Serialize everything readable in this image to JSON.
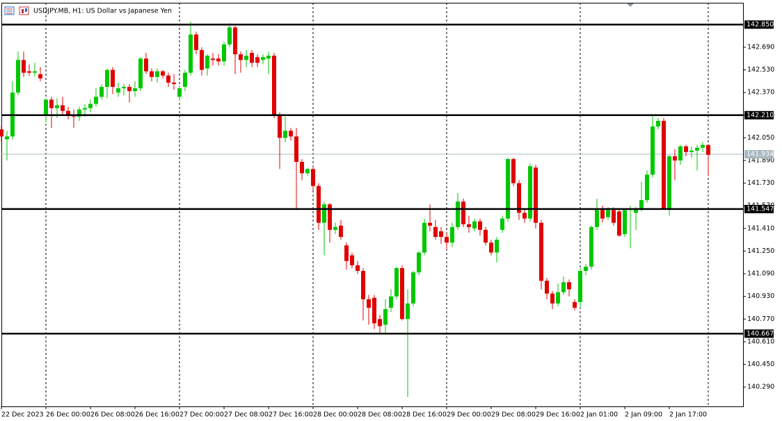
{
  "chart_data": {
    "type": "candlestick",
    "title": "USDJPY.MB, H1:  US Dollar vs Japanese Yen",
    "categories": [
      "22 Dec 2023",
      null,
      null,
      null,
      null,
      null,
      null,
      null,
      "26 Dec 00:00",
      null,
      null,
      null,
      null,
      null,
      null,
      null,
      "26 Dec 08:00",
      null,
      null,
      null,
      null,
      null,
      null,
      null,
      "26 Dec 16:00",
      null,
      null,
      null,
      null,
      null,
      null,
      null,
      "27 Dec 00:00",
      null,
      null,
      null,
      null,
      null,
      null,
      null,
      "27 Dec 08:00",
      null,
      null,
      null,
      null,
      null,
      null,
      null,
      "27 Dec 16:00",
      null,
      null,
      null,
      null,
      null,
      null,
      null,
      "28 Dec 00:00",
      null,
      null,
      null,
      null,
      null,
      null,
      null,
      "28 Dec 08:00",
      null,
      null,
      null,
      null,
      null,
      null,
      null,
      "28 Dec 16:00",
      null,
      null,
      null,
      null,
      null,
      null,
      null,
      "29 Dec 00:00",
      null,
      null,
      null,
      null,
      null,
      null,
      null,
      "29 Dec 08:00",
      null,
      null,
      null,
      null,
      null,
      null,
      null,
      "29 Dec 16:00",
      null,
      null,
      null,
      null,
      null,
      null,
      null,
      "2 Jan 01:00",
      null,
      null,
      null,
      null,
      null,
      null,
      null,
      "2 Jan 09:00",
      null,
      null,
      null,
      null,
      null,
      null,
      null,
      "2 Jan 17:00",
      null,
      null,
      null,
      null,
      null,
      null,
      null
    ],
    "open": [
      142.11,
      142.04,
      142.06,
      142.37,
      142.6,
      142.52,
      142.51,
      142.5,
      142.21,
      142.32,
      142.26,
      142.28,
      142.24,
      142.21,
      142.2,
      142.25,
      142.26,
      142.29,
      142.34,
      142.41,
      142.53,
      142.37,
      142.4,
      142.41,
      142.38,
      142.4,
      142.61,
      142.52,
      142.48,
      142.52,
      142.49,
      142.44,
      142.34,
      142.41,
      142.51,
      142.78,
      142.67,
      142.54,
      142.61,
      142.61,
      142.59,
      142.71,
      142.83,
      142.64,
      142.6,
      142.65,
      142.62,
      142.6,
      142.61,
      142.63,
      142.21,
      142.05,
      142.1,
      142.06,
      141.88,
      141.8,
      141.83,
      141.71,
      141.45,
      141.58,
      141.4,
      141.43,
      141.29,
      141.22,
      141.15,
      141.11,
      140.91,
      140.92,
      140.77,
      140.73,
      140.85,
      140.93,
      141.13,
      140.77,
      140.88,
      141.1,
      141.24,
      141.45,
      141.42,
      141.39,
      141.35,
      141.31,
      141.42,
      141.6,
      141.44,
      141.41,
      141.46,
      141.4,
      141.31,
      141.24,
      141.4,
      141.48,
      141.9,
      141.73,
      141.52,
      141.48,
      141.84,
      141.45,
      141.04,
      140.95,
      140.88,
      140.96,
      141.03,
      140.89,
      140.89,
      141.11,
      141.14,
      141.42,
      141.54,
      141.49,
      141.54,
      141.53,
      141.37,
      141.54,
      141.52,
      141.55,
      141.61,
      141.79,
      142.13,
      142.17,
      141.55,
      141.92,
      141.89,
      141.99,
      141.95,
      141.96,
      141.98,
      142.0
    ],
    "high": [
      142.14,
      142.1,
      142.45,
      142.66,
      142.66,
      142.57,
      142.58,
      142.55,
      142.33,
      142.34,
      142.33,
      142.34,
      142.27,
      142.25,
      142.27,
      142.29,
      142.32,
      142.4,
      142.43,
      142.54,
      142.55,
      142.44,
      142.43,
      142.43,
      142.45,
      142.62,
      142.65,
      142.54,
      142.54,
      142.53,
      142.51,
      142.5,
      142.42,
      142.53,
      142.87,
      142.8,
      142.69,
      142.64,
      142.65,
      142.64,
      142.73,
      142.86,
      142.84,
      142.66,
      142.67,
      142.67,
      142.64,
      142.64,
      142.66,
      142.65,
      142.23,
      142.2,
      142.12,
      142.12,
      141.9,
      141.84,
      141.85,
      141.73,
      141.6,
      141.59,
      141.45,
      141.47,
      141.31,
      141.24,
      141.18,
      141.13,
      140.94,
      140.94,
      140.8,
      140.91,
      140.98,
      141.14,
      141.15,
      140.98,
      141.11,
      141.25,
      141.48,
      141.58,
      141.47,
      141.42,
      141.38,
      141.45,
      141.66,
      141.62,
      141.5,
      141.48,
      141.48,
      141.42,
      141.33,
      141.35,
      141.5,
      141.91,
      141.91,
      141.75,
      141.55,
      141.87,
      141.86,
      141.47,
      141.06,
      140.97,
      141.02,
      141.07,
      141.05,
      140.91,
      141.13,
      141.16,
      141.43,
      141.62,
      141.57,
      141.56,
      141.56,
      141.55,
      141.55,
      141.57,
      141.56,
      141.74,
      141.82,
      142.21,
      142.19,
      142.19,
      141.93,
      141.97,
      142.0,
      142.0,
      141.99,
      142.0,
      142.02,
      142.0
    ],
    "low": [
      142.02,
      141.89,
      142.04,
      142.35,
      142.48,
      142.49,
      142.48,
      142.45,
      142.16,
      142.12,
      142.19,
      142.21,
      142.18,
      142.12,
      142.17,
      142.2,
      142.23,
      142.27,
      142.32,
      142.33,
      142.36,
      142.34,
      142.35,
      142.3,
      142.34,
      142.38,
      142.5,
      142.45,
      142.44,
      142.47,
      142.41,
      142.39,
      142.31,
      142.38,
      142.49,
      142.64,
      142.49,
      142.49,
      142.56,
      142.56,
      142.56,
      142.69,
      142.5,
      142.51,
      142.55,
      142.55,
      142.55,
      142.57,
      142.5,
      142.19,
      141.83,
      142.02,
      142.03,
      141.55,
      141.75,
      141.78,
      141.68,
      141.4,
      141.22,
      141.31,
      141.37,
      141.33,
      141.12,
      141.13,
      141.09,
      140.76,
      140.73,
      140.7,
      140.66,
      140.66,
      140.82,
      140.91,
      140.76,
      140.22,
      140.86,
      141.08,
      141.22,
      141.39,
      141.33,
      141.3,
      141.26,
      141.28,
      141.4,
      141.42,
      141.38,
      141.39,
      141.36,
      141.29,
      141.22,
      141.17,
      141.38,
      141.46,
      141.71,
      141.47,
      141.45,
      141.46,
      141.41,
      140.98,
      140.91,
      140.84,
      140.86,
      140.94,
      140.93,
      140.83,
      140.85,
      141.08,
      141.12,
      141.4,
      141.45,
      141.47,
      141.43,
      141.35,
      141.35,
      141.27,
      141.4,
      141.53,
      141.59,
      141.77,
      142.11,
      141.55,
      141.5,
      141.75,
      141.86,
      141.92,
      141.91,
      141.82,
      141.95,
      141.78
    ],
    "close": [
      142.06,
      142.06,
      142.37,
      142.6,
      142.51,
      142.51,
      142.52,
      142.47,
      142.32,
      142.26,
      142.28,
      142.24,
      142.21,
      142.2,
      142.25,
      142.26,
      142.29,
      142.34,
      142.41,
      142.53,
      142.41,
      142.4,
      142.41,
      142.38,
      142.4,
      142.61,
      142.52,
      142.48,
      142.52,
      142.49,
      142.44,
      142.43,
      142.4,
      142.51,
      142.78,
      142.67,
      142.53,
      142.63,
      142.6,
      142.59,
      142.71,
      142.83,
      142.64,
      142.6,
      142.63,
      142.58,
      142.58,
      142.62,
      142.63,
      142.21,
      142.05,
      142.1,
      142.06,
      141.88,
      141.8,
      141.83,
      141.71,
      141.45,
      141.58,
      141.4,
      141.42,
      141.35,
      141.18,
      141.15,
      141.11,
      140.91,
      140.85,
      140.74,
      140.72,
      140.84,
      140.93,
      141.13,
      140.77,
      140.88,
      141.1,
      141.24,
      141.45,
      141.43,
      141.35,
      141.35,
      141.31,
      141.42,
      141.6,
      141.44,
      141.42,
      141.46,
      141.4,
      141.31,
      141.24,
      141.33,
      141.48,
      141.9,
      141.73,
      141.52,
      141.48,
      141.85,
      141.45,
      141.04,
      140.95,
      140.88,
      140.96,
      141.03,
      140.98,
      140.85,
      141.11,
      141.14,
      141.42,
      141.55,
      141.48,
      141.54,
      141.45,
      141.36,
      141.54,
      141.55,
      141.55,
      141.61,
      141.79,
      142.13,
      142.17,
      141.55,
      141.92,
      141.89,
      141.99,
      141.95,
      141.96,
      141.98,
      142.0,
      141.93
    ],
    "up_color": "#00c800",
    "down_color": "#e00000",
    "ylim": [
      140.153,
      143.004
    ],
    "yticks": [
      {
        "value": 142.69,
        "label": "142.690"
      },
      {
        "value": 142.53,
        "label": "142.530"
      },
      {
        "value": 142.37,
        "label": "142.370"
      },
      {
        "value": 142.21,
        "label": "142.210"
      },
      {
        "value": 142.05,
        "label": "142.050"
      },
      {
        "value": 141.89,
        "label": "141.890"
      },
      {
        "value": 141.73,
        "label": "141.730"
      },
      {
        "value": 141.57,
        "label": "141.570"
      },
      {
        "value": 141.41,
        "label": "141.410"
      },
      {
        "value": 141.25,
        "label": "141.250"
      },
      {
        "value": 141.09,
        "label": "141.090"
      },
      {
        "value": 140.93,
        "label": "140.930"
      },
      {
        "value": 140.77,
        "label": "140.770"
      },
      {
        "value": 140.61,
        "label": "140.610"
      },
      {
        "value": 140.45,
        "label": "140.450"
      },
      {
        "value": 140.29,
        "label": "140.290"
      }
    ],
    "levels": [
      {
        "value": 142.85,
        "label": "142.850"
      },
      {
        "value": 142.21,
        "label": "142.210"
      },
      {
        "value": 141.547,
        "label": "141.547"
      },
      {
        "value": 140.667,
        "label": "140.667"
      }
    ],
    "current_price": {
      "value": 141.934,
      "label": "141.934"
    }
  }
}
